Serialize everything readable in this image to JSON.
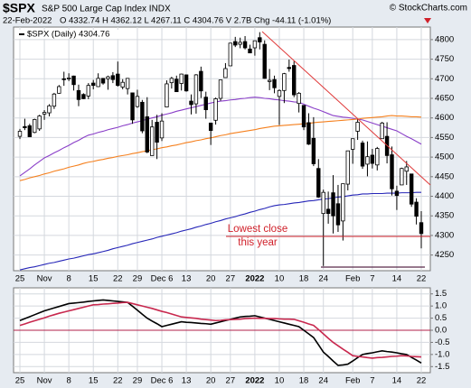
{
  "chart_data": [
    {
      "type": "candlestick",
      "symbol": "$SPX",
      "title": "S&P 500 Large Cap Index INDX",
      "credit": "© StockCharts.com",
      "date": "22-Feb-2022",
      "quote": "O 4332.74 H 4362.12 L 4267.11 C 4304.76 V 2.7B Chg -44.11 (-1.01%)",
      "legend": "$SPX (Daily) 4304.76",
      "annotation": [
        "Lowest close",
        "this year"
      ],
      "categories": [
        "25",
        null,
        null,
        null,
        null,
        "Nov",
        null,
        null,
        null,
        null,
        "8",
        null,
        null,
        null,
        null,
        "15",
        null,
        null,
        null,
        null,
        "22",
        null,
        null,
        null,
        "29",
        null,
        null,
        null,
        null,
        "Dec 6",
        null,
        null,
        null,
        null,
        "13",
        null,
        null,
        null,
        null,
        "20",
        null,
        null,
        null,
        "27",
        null,
        null,
        null,
        null,
        "2022",
        null,
        null,
        null,
        null,
        "10",
        null,
        null,
        null,
        null,
        "18",
        null,
        null,
        null,
        "24",
        null,
        null,
        null,
        null,
        null,
        "Feb",
        null,
        null,
        null,
        "7",
        null,
        null,
        null,
        null,
        "14",
        null,
        null,
        null,
        null,
        "22"
      ],
      "ohlc": [
        [
          4553,
          4572,
          4546,
          4566
        ],
        [
          4578,
          4598,
          4569,
          4575
        ],
        [
          4580,
          4585,
          4551,
          4552
        ],
        [
          4563,
          4598,
          4561,
          4596
        ],
        [
          4572,
          4608,
          4567,
          4605
        ],
        [
          4610,
          4620,
          4595,
          4614
        ],
        [
          4613,
          4635,
          4604,
          4631
        ],
        [
          4630,
          4664,
          4623,
          4661
        ],
        [
          4663,
          4684,
          4662,
          4680
        ],
        [
          4700,
          4718,
          4682,
          4698
        ],
        [
          4702,
          4714,
          4694,
          4702
        ],
        [
          4707,
          4708,
          4670,
          4685
        ],
        [
          4670,
          4685,
          4630,
          4647
        ],
        [
          4660,
          4663,
          4648,
          4649
        ],
        [
          4656,
          4689,
          4648,
          4683
        ],
        [
          4689,
          4697,
          4673,
          4683
        ],
        [
          4680,
          4714,
          4679,
          4701
        ],
        [
          4701,
          4702,
          4685,
          4689
        ],
        [
          4700,
          4708,
          4672,
          4705
        ],
        [
          4708,
          4717,
          4689,
          4698
        ],
        [
          4712,
          4744,
          4680,
          4683
        ],
        [
          4679,
          4699,
          4673,
          4691
        ],
        [
          4675,
          4702,
          4660,
          4701
        ],
        [
          4664,
          4664,
          4585,
          4595
        ],
        [
          4629,
          4672,
          4626,
          4655
        ],
        [
          4640,
          4646,
          4561,
          4567
        ],
        [
          4603,
          4653,
          4510,
          4513
        ],
        [
          4504,
          4595,
          4504,
          4577
        ],
        [
          4589,
          4608,
          4495,
          4538
        ],
        [
          4549,
          4612,
          4541,
          4592
        ],
        [
          4628,
          4696,
          4628,
          4687
        ],
        [
          4690,
          4705,
          4675,
          4701
        ],
        [
          4699,
          4708,
          4667,
          4667
        ],
        [
          4688,
          4713,
          4670,
          4712
        ],
        [
          4710,
          4711,
          4667,
          4669
        ],
        [
          4643,
          4660,
          4609,
          4634
        ],
        [
          4636,
          4712,
          4611,
          4710
        ],
        [
          4719,
          4731,
          4651,
          4669
        ],
        [
          4653,
          4667,
          4598,
          4621
        ],
        [
          4587,
          4587,
          4531,
          4568
        ],
        [
          4594,
          4652,
          4583,
          4649
        ],
        [
          4650,
          4697,
          4644,
          4697
        ],
        [
          4703,
          4740,
          4703,
          4726
        ],
        [
          4733,
          4791,
          4733,
          4791
        ],
        [
          4795,
          4807,
          4781,
          4786
        ],
        [
          4788,
          4805,
          4778,
          4793
        ],
        [
          4795,
          4809,
          4775,
          4779
        ],
        [
          4776,
          4787,
          4766,
          4766
        ],
        [
          4779,
          4797,
          4759,
          4797
        ],
        [
          4805,
          4819,
          4775,
          4794
        ],
        [
          4788,
          4798,
          4700,
          4701
        ],
        [
          4693,
          4725,
          4671,
          4696
        ],
        [
          4698,
          4708,
          4663,
          4677
        ],
        [
          4655,
          4673,
          4582,
          4670
        ],
        [
          4670,
          4715,
          4638,
          4713
        ],
        [
          4729,
          4749,
          4718,
          4726
        ],
        [
          4734,
          4745,
          4653,
          4659
        ],
        [
          4637,
          4666,
          4614,
          4663
        ],
        [
          4632,
          4632,
          4569,
          4577
        ],
        [
          4588,
          4612,
          4531,
          4533
        ],
        [
          4548,
          4602,
          4477,
          4483
        ],
        [
          4471,
          4495,
          4396,
          4398
        ],
        [
          4356,
          4417,
          4222,
          4410
        ],
        [
          4367,
          4412,
          4330,
          4356
        ],
        [
          4409,
          4454,
          4305,
          4350
        ],
        [
          4381,
          4429,
          4309,
          4327
        ],
        [
          4337,
          4432,
          4287,
          4432
        ],
        [
          4431,
          4516,
          4415,
          4516
        ],
        [
          4520,
          4546,
          4483,
          4547
        ],
        [
          4566,
          4596,
          4544,
          4589
        ],
        [
          4536,
          4542,
          4470,
          4477
        ],
        [
          4482,
          4540,
          4451,
          4501
        ],
        [
          4505,
          4521,
          4471,
          4484
        ],
        [
          4480,
          4526,
          4466,
          4522
        ],
        [
          4547,
          4590,
          4547,
          4587
        ],
        [
          4553,
          4589,
          4484,
          4504
        ],
        [
          4506,
          4527,
          4402,
          4419
        ],
        [
          4413,
          4427,
          4365,
          4402
        ],
        [
          4429,
          4473,
          4429,
          4471
        ],
        [
          4464,
          4490,
          4429,
          4475
        ],
        [
          4457,
          4457,
          4373,
          4380
        ],
        [
          4385,
          4395,
          4328,
          4349
        ],
        [
          4332.74,
          4362.12,
          4267.11,
          4304.76
        ]
      ],
      "series": [
        {
          "color": "#8a3fc8",
          "values": [
            4452,
            4461,
            4470,
            4480,
            4489,
            4498,
            4504,
            4511,
            4517,
            4524,
            4530,
            4537,
            4543,
            4550,
            4556,
            4559,
            4563,
            4566,
            4570,
            4573,
            4576,
            4580,
            4583,
            4587,
            4590,
            4593,
            4597,
            4600,
            4603,
            4607,
            4610,
            4613,
            4617,
            4620,
            4623,
            4626,
            4629,
            4632,
            4635,
            4638,
            4641,
            4643,
            4644,
            4646,
            4647,
            4649,
            4650,
            4652,
            4653,
            4652,
            4650,
            4649,
            4647,
            4646,
            4644,
            4643,
            4641,
            4640,
            4635,
            4630,
            4625,
            4621,
            4616,
            4611,
            4606,
            4604,
            4602,
            4601,
            4599,
            4597,
            4595,
            4591,
            4587,
            4583,
            4579,
            4575,
            4571,
            4567,
            4560,
            4553,
            4547,
            4540,
            4533
          ]
        },
        {
          "color": "#f5801e",
          "values": [
            4440,
            4443,
            4447,
            4450,
            4453,
            4457,
            4460,
            4464,
            4467,
            4470,
            4474,
            4477,
            4480,
            4484,
            4487,
            4489,
            4492,
            4494,
            4497,
            4499,
            4502,
            4504,
            4506,
            4509,
            4511,
            4514,
            4516,
            4519,
            4521,
            4524,
            4526,
            4529,
            4531,
            4534,
            4537,
            4539,
            4542,
            4544,
            4547,
            4549,
            4552,
            4555,
            4557,
            4560,
            4562,
            4564,
            4566,
            4568,
            4570,
            4573,
            4575,
            4577,
            4579,
            4580,
            4581,
            4582,
            4583,
            4584,
            4585,
            4586,
            4588,
            4589,
            4590,
            4591,
            4592,
            4593,
            4594,
            4595,
            4596,
            4597,
            4599,
            4600,
            4601,
            4602,
            4603,
            4605,
            4606,
            4605,
            4605,
            4604,
            4603,
            4603,
            4602
          ]
        },
        {
          "color": "#2626b8",
          "values": [
            4212,
            4215,
            4218,
            4220,
            4223,
            4226,
            4229,
            4231,
            4234,
            4237,
            4240,
            4242,
            4245,
            4248,
            4251,
            4253,
            4256,
            4259,
            4262,
            4266,
            4269,
            4272,
            4275,
            4279,
            4282,
            4285,
            4288,
            4291,
            4295,
            4298,
            4301,
            4304,
            4307,
            4311,
            4314,
            4317,
            4321,
            4324,
            4328,
            4331,
            4335,
            4338,
            4342,
            4345,
            4348,
            4352,
            4355,
            4359,
            4362,
            4366,
            4369,
            4373,
            4376,
            4378,
            4379,
            4381,
            4383,
            4384,
            4386,
            4388,
            4389,
            4391,
            4393,
            4394,
            4396,
            4398,
            4399,
            4401,
            4403,
            4404,
            4406,
            4406,
            4407,
            4407,
            4407,
            4408,
            4408,
            4408,
            4409,
            4409,
            4409,
            4410,
            4410
          ]
        }
      ],
      "ylim": [
        4210,
        4832
      ],
      "yticks": [
        4250,
        4300,
        4350,
        4400,
        4450,
        4500,
        4550,
        4600,
        4650,
        4700,
        4750,
        4800
      ],
      "grid": true
    },
    {
      "type": "line",
      "categories": [
        "25",
        null,
        null,
        null,
        null,
        "Nov",
        null,
        null,
        null,
        null,
        "8",
        null,
        null,
        null,
        null,
        "15",
        null,
        null,
        null,
        null,
        "22",
        null,
        null,
        null,
        "29",
        null,
        null,
        null,
        null,
        "Dec 6",
        null,
        null,
        null,
        null,
        "13",
        null,
        null,
        null,
        null,
        "20",
        null,
        null,
        null,
        "27",
        null,
        null,
        null,
        null,
        "2022",
        null,
        null,
        null,
        null,
        "10",
        null,
        null,
        null,
        null,
        "18",
        null,
        null,
        null,
        "24",
        null,
        null,
        null,
        null,
        null,
        "Feb",
        null,
        null,
        null,
        "7",
        null,
        null,
        null,
        null,
        "14",
        null,
        null,
        null,
        null,
        "22"
      ],
      "series": [
        {
          "color": "#000000",
          "values": [
            0.4,
            0.48,
            0.56,
            0.64,
            0.72,
            0.8,
            0.86,
            0.92,
            0.98,
            1.04,
            1.1,
            1.12,
            1.14,
            1.16,
            1.19,
            1.21,
            1.23,
            1.25,
            1.23,
            1.21,
            1.19,
            1.17,
            1.15,
            0.99,
            0.83,
            0.66,
            0.5,
            0.38,
            0.27,
            0.15,
            0.2,
            0.25,
            0.3,
            0.35,
            0.33,
            0.32,
            0.3,
            0.28,
            0.27,
            0.25,
            0.3,
            0.35,
            0.4,
            0.45,
            0.5,
            0.55,
            0.57,
            0.58,
            0.6,
            0.55,
            0.5,
            0.45,
            0.4,
            0.35,
            0.3,
            0.25,
            0.2,
            0.15,
            0,
            -0.15,
            -0.3,
            -0.6,
            -0.9,
            -1.08,
            -1.27,
            -1.45,
            -1.43,
            -1.4,
            -1.27,
            -1.13,
            -1.0,
            -0.96,
            -0.93,
            -0.89,
            -0.85,
            -0.88,
            -0.9,
            -0.93,
            -0.97,
            -1.0,
            -1.12,
            -1.23,
            -1.35
          ]
        },
        {
          "color": "#c8284e",
          "values": [
            0.2,
            0.26,
            0.33,
            0.39,
            0.45,
            0.51,
            0.58,
            0.64,
            0.7,
            0.75,
            0.8,
            0.85,
            0.9,
            0.95,
            1.0,
            1.05,
            1.06,
            1.08,
            1.09,
            1.11,
            1.12,
            1.14,
            1.15,
            1.1,
            1.05,
            1.0,
            0.95,
            0.9,
            0.84,
            0.78,
            0.73,
            0.67,
            0.61,
            0.55,
            0.53,
            0.51,
            0.49,
            0.46,
            0.44,
            0.42,
            0.4,
            0.41,
            0.43,
            0.44,
            0.45,
            0.46,
            0.48,
            0.49,
            0.5,
            0.49,
            0.49,
            0.48,
            0.48,
            0.47,
            0.46,
            0.46,
            0.45,
            0.39,
            0.33,
            0.26,
            0.2,
            0.03,
            -0.15,
            -0.33,
            -0.5,
            -0.64,
            -0.78,
            -0.91,
            -1.05,
            -1.08,
            -1.1,
            -1.13,
            -1.15,
            -1.13,
            -1.12,
            -1.1,
            -1.08,
            -1.07,
            -1.05,
            -1.06,
            -1.08,
            -1.09,
            -1.1
          ]
        }
      ],
      "ylim": [
        -1.75,
        1.75
      ],
      "yticks": [
        1.5,
        {
          "value": 1,
          "label": "1.0"
        },
        0.5,
        {
          "value": 0,
          "label": "0.0"
        },
        -0.5,
        {
          "value": -1,
          "label": "-1.0"
        },
        -1.5
      ],
      "grid": true
    }
  ]
}
